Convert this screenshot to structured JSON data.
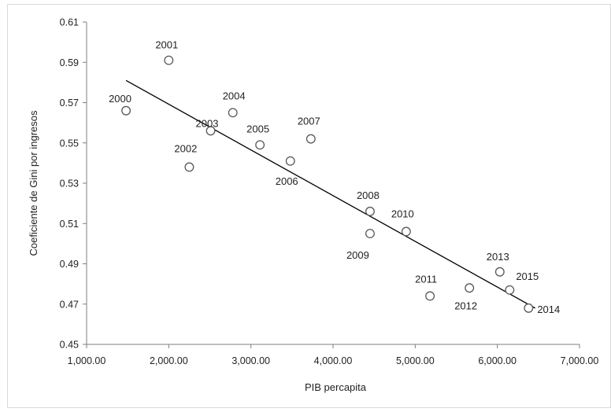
{
  "colors": {
    "axis": "#7f7f7f",
    "marker_stroke": "#595959",
    "marker_fill": "#ffffff",
    "trendline": "#000000",
    "text": "#222222",
    "frame": "#d9d9d9"
  },
  "chart_data": {
    "type": "scatter",
    "title": "",
    "xlabel": "PIB percapita",
    "ylabel": "Coeficiente de Gini por ingresos",
    "xlim": [
      1000,
      7000
    ],
    "ylim": [
      0.45,
      0.61
    ],
    "x_ticks": [
      1000,
      2000,
      3000,
      4000,
      5000,
      6000,
      7000
    ],
    "x_tick_labels": [
      "1,000.00",
      "2,000.00",
      "3,000.00",
      "4,000.00",
      "5,000.00",
      "6,000.00",
      "7,000.00"
    ],
    "y_ticks": [
      0.45,
      0.47,
      0.49,
      0.51,
      0.53,
      0.55,
      0.57,
      0.59,
      0.61
    ],
    "y_tick_labels": [
      "0.45",
      "0.47",
      "0.49",
      "0.51",
      "0.53",
      "0.55",
      "0.57",
      "0.59",
      "0.61"
    ],
    "grid": false,
    "legend": "none",
    "marker": "hollow-circle",
    "points": [
      {
        "label": "2000",
        "x": 1480,
        "y": 0.566
      },
      {
        "label": "2001",
        "x": 2000,
        "y": 0.591
      },
      {
        "label": "2002",
        "x": 2250,
        "y": 0.538
      },
      {
        "label": "2003",
        "x": 2510,
        "y": 0.556
      },
      {
        "label": "2004",
        "x": 2780,
        "y": 0.565
      },
      {
        "label": "2005",
        "x": 3110,
        "y": 0.549
      },
      {
        "label": "2006",
        "x": 3480,
        "y": 0.541
      },
      {
        "label": "2007",
        "x": 3730,
        "y": 0.552
      },
      {
        "label": "2008",
        "x": 4450,
        "y": 0.516
      },
      {
        "label": "2009",
        "x": 4450,
        "y": 0.505
      },
      {
        "label": "2010",
        "x": 4890,
        "y": 0.506
      },
      {
        "label": "2011",
        "x": 5180,
        "y": 0.474
      },
      {
        "label": "2012",
        "x": 5660,
        "y": 0.478
      },
      {
        "label": "2013",
        "x": 6030,
        "y": 0.486
      },
      {
        "label": "2014",
        "x": 6380,
        "y": 0.468
      },
      {
        "label": "2015",
        "x": 6150,
        "y": 0.477
      }
    ],
    "trendline": {
      "type": "linear",
      "x": [
        1480,
        6460
      ],
      "y": [
        0.581,
        0.468
      ]
    }
  }
}
